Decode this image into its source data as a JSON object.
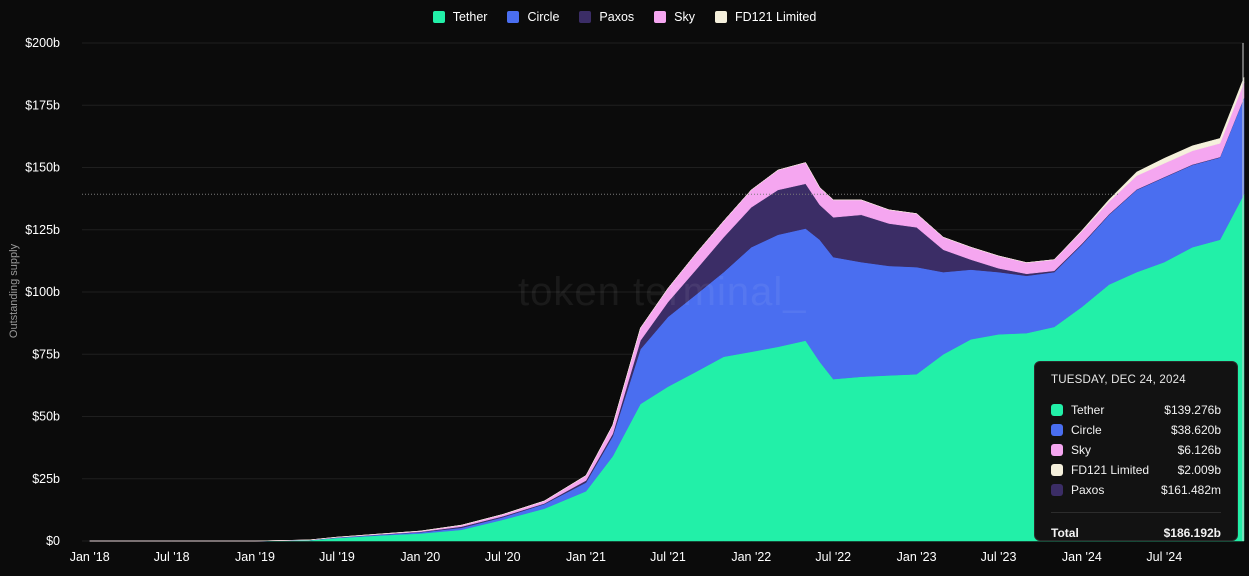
{
  "chart_data": {
    "type": "area",
    "stacked": true,
    "ylabel": "Outstanding supply",
    "ylim": [
      0,
      200
    ],
    "y_ticks": [
      "$0",
      "$25b",
      "$50b",
      "$75b",
      "$100b",
      "$125b",
      "$150b",
      "$175b",
      "$200b"
    ],
    "x_ticks": [
      "Jan '18",
      "Jul '18",
      "Jan '19",
      "Jul '19",
      "Jan '20",
      "Jul '20",
      "Jan '21",
      "Jul '21",
      "Jan '22",
      "Jul '22",
      "Jan '23",
      "Jul '23",
      "Jan '24",
      "Jul '24"
    ],
    "x": [
      "2018-01",
      "2018-07",
      "2019-01",
      "2019-05",
      "2019-07",
      "2019-10",
      "2020-01",
      "2020-04",
      "2020-07",
      "2020-10",
      "2021-01",
      "2021-03",
      "2021-05",
      "2021-07",
      "2021-09",
      "2021-11",
      "2022-01",
      "2022-03",
      "2022-05",
      "2022-06",
      "2022-07",
      "2022-09",
      "2022-11",
      "2023-01",
      "2023-03",
      "2023-05",
      "2023-07",
      "2023-09",
      "2023-11",
      "2024-01",
      "2024-03",
      "2024-05",
      "2024-07",
      "2024-09",
      "2024-11",
      "2024-12-24"
    ],
    "series": [
      {
        "name": "Tether",
        "color": "#22f0a8",
        "values": [
          0,
          0,
          0,
          0.3,
          1.2,
          2.2,
          3.0,
          4.5,
          8.5,
          13.0,
          20.0,
          34.0,
          55.0,
          62.0,
          68.0,
          74.0,
          76.0,
          78.0,
          80.5,
          72.0,
          65.0,
          66.0,
          66.5,
          67.0,
          75.0,
          81.0,
          83.0,
          83.5,
          86.0,
          94.0,
          103.0,
          108.0,
          112.0,
          118.0,
          121.0,
          139.276
        ]
      },
      {
        "name": "Circle",
        "color": "#4a6ef0",
        "values": [
          0,
          0,
          0,
          0.05,
          0.15,
          0.3,
          0.5,
          0.8,
          1.0,
          1.8,
          3.5,
          8.0,
          22.0,
          28.0,
          31.0,
          34.0,
          42.0,
          45.0,
          45.0,
          49.0,
          49.0,
          46.0,
          44.0,
          43.0,
          33.0,
          28.0,
          25.0,
          23.0,
          22.0,
          25.0,
          28.0,
          33.0,
          34.0,
          33.0,
          33.0,
          38.62
        ]
      },
      {
        "name": "Paxos",
        "color": "#3b2d66",
        "values": [
          0,
          0,
          0,
          0.05,
          0.1,
          0.1,
          0.2,
          0.5,
          0.4,
          0.3,
          0.8,
          1.0,
          3.5,
          6.0,
          10.0,
          14.0,
          16.0,
          18.0,
          18.0,
          14.0,
          16.0,
          19.0,
          17.0,
          16.0,
          9.0,
          4.0,
          1.5,
          0.8,
          0.5,
          0.4,
          0.3,
          0.2,
          0.2,
          0.2,
          0.2,
          0.161
        ]
      },
      {
        "name": "Sky",
        "color": "#f5a6f0",
        "values": [
          0,
          0,
          0,
          0.05,
          0.1,
          0.2,
          0.3,
          0.6,
          0.8,
          1.0,
          2.0,
          3.5,
          5.0,
          5.5,
          6.5,
          6.5,
          7.0,
          8.0,
          8.5,
          7.0,
          7.0,
          6.0,
          5.5,
          5.5,
          5.0,
          5.0,
          5.0,
          4.5,
          4.5,
          5.0,
          5.0,
          5.5,
          5.5,
          5.5,
          5.5,
          6.126
        ]
      },
      {
        "name": "FD121 Limited",
        "color": "#f5f0dc",
        "values": [
          0,
          0,
          0,
          0,
          0,
          0,
          0,
          0,
          0,
          0,
          0,
          0,
          0,
          0,
          0,
          0,
          0,
          0,
          0,
          0,
          0,
          0,
          0,
          0,
          0,
          0,
          0,
          0,
          0,
          0.3,
          0.8,
          1.5,
          2.0,
          2.0,
          2.0,
          2.009
        ]
      }
    ],
    "reference_line": 139.276,
    "grid": true,
    "legend_position": "top-center"
  },
  "tooltip": {
    "date": "TUESDAY, DEC 24, 2024",
    "rows": [
      {
        "name": "Tether",
        "value": "$139.276b",
        "color": "#22f0a8"
      },
      {
        "name": "Circle",
        "value": "$38.620b",
        "color": "#4a6ef0"
      },
      {
        "name": "Sky",
        "value": "$6.126b",
        "color": "#f5a6f0"
      },
      {
        "name": "FD121 Limited",
        "value": "$2.009b",
        "color": "#f5f0dc"
      },
      {
        "name": "Paxos",
        "value": "$161.482m",
        "color": "#3b2d66"
      }
    ],
    "total_label": "Total",
    "total_value": "$186.192b"
  },
  "watermark": "token terminal_"
}
